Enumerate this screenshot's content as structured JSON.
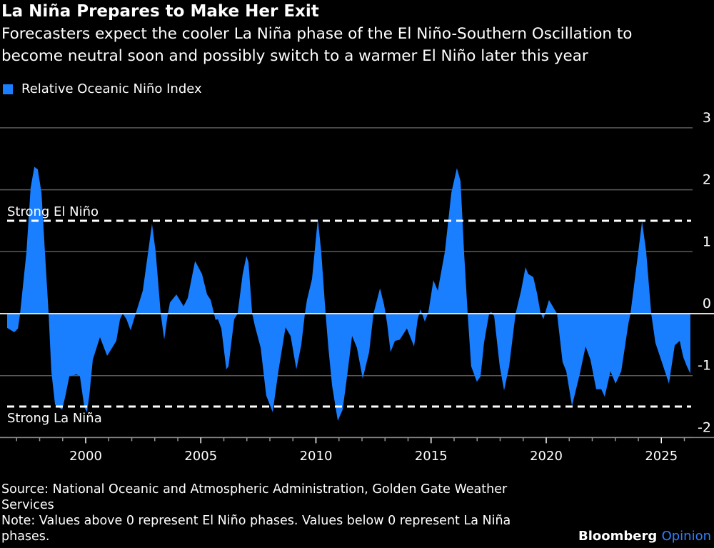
{
  "header": {
    "title": "La Niña Prepares to Make Her Exit",
    "subtitle_line1": "Forecasters expect the cooler La Niña phase of the El Niño-Southern Oscillation to",
    "subtitle_line2": "become neutral soon and possibly switch to a warmer El Niño later this year"
  },
  "footer": {
    "source_line1": "Source: National Oceanic and Atmospheric Administration, Golden Gate Weather",
    "source_line2": "Services",
    "note_line1": "Note: Values above 0 represent El Niño phases. Values below 0 represent La Niña",
    "note_line2": "phases.",
    "brand": "Bloomberg",
    "brand_suffix": "Opinion"
  },
  "colors": {
    "series": "#1a7fff",
    "background": "#000000",
    "grid": "#5a5a5a",
    "threshold": "#ffffff"
  },
  "chart_data": {
    "type": "area",
    "title": "La Niña Prepares to Make Her Exit",
    "xlabel": "",
    "ylabel": "",
    "legend": [
      "Relative Oceanic Niño Index"
    ],
    "legend_position": "top-left",
    "xlim": [
      1996.28,
      2026.3
    ],
    "ylim": [
      -2,
      3
    ],
    "x_ticks": [
      2000,
      2005,
      2010,
      2015,
      2020,
      2025
    ],
    "x_tick_labels": [
      "2000",
      "2005",
      "2010",
      "2015",
      "2020",
      "2025"
    ],
    "y_ticks": [
      3,
      2,
      1,
      0,
      -1,
      -2
    ],
    "y_tick_labels": [
      "3",
      "2",
      "1",
      "0",
      "-1",
      "-2"
    ],
    "grid": true,
    "thresholds": [
      {
        "label": "Strong El Niño",
        "value": 1.5
      },
      {
        "label": "Strong La Niña",
        "value": -1.5
      }
    ],
    "series": [
      {
        "name": "Relative Oceanic Niño Index",
        "points": [
          [
            1996.59,
            -0.23
          ],
          [
            1996.9,
            -0.3
          ],
          [
            1997.06,
            -0.24
          ],
          [
            1997.15,
            0.0
          ],
          [
            1997.43,
            1.0
          ],
          [
            1997.61,
            2.03
          ],
          [
            1997.77,
            2.37
          ],
          [
            1997.92,
            2.33
          ],
          [
            1998.08,
            1.95
          ],
          [
            1998.23,
            1.0
          ],
          [
            1998.39,
            0.0
          ],
          [
            1998.51,
            -0.93
          ],
          [
            1998.67,
            -1.47
          ],
          [
            1998.98,
            -1.55
          ],
          [
            1999.13,
            -1.31
          ],
          [
            1999.29,
            -1.01
          ],
          [
            1999.6,
            -0.98
          ],
          [
            1999.75,
            -1.01
          ],
          [
            1999.94,
            -1.51
          ],
          [
            2000.06,
            -1.59
          ],
          [
            2000.16,
            -1.31
          ],
          [
            2000.31,
            -0.74
          ],
          [
            2000.62,
            -0.38
          ],
          [
            2000.93,
            -0.68
          ],
          [
            2001.15,
            -0.55
          ],
          [
            2001.33,
            -0.44
          ],
          [
            2001.49,
            -0.09
          ],
          [
            2001.61,
            0.0
          ],
          [
            2001.77,
            -0.09
          ],
          [
            2001.95,
            -0.27
          ],
          [
            2002.17,
            0.0
          ],
          [
            2002.48,
            0.37
          ],
          [
            2002.88,
            1.45
          ],
          [
            2003.04,
            1.0
          ],
          [
            2003.26,
            0.0
          ],
          [
            2003.41,
            -0.42
          ],
          [
            2003.57,
            0.0
          ],
          [
            2003.66,
            0.18
          ],
          [
            2003.94,
            0.31
          ],
          [
            2004.25,
            0.12
          ],
          [
            2004.43,
            0.25
          ],
          [
            2004.75,
            0.85
          ],
          [
            2005.05,
            0.64
          ],
          [
            2005.27,
            0.31
          ],
          [
            2005.43,
            0.22
          ],
          [
            2005.64,
            -0.1
          ],
          [
            2005.74,
            -0.09
          ],
          [
            2005.89,
            -0.24
          ],
          [
            2006.11,
            -0.9
          ],
          [
            2006.2,
            -0.85
          ],
          [
            2006.45,
            -0.09
          ],
          [
            2006.6,
            0.0
          ],
          [
            2006.82,
            0.64
          ],
          [
            2006.98,
            0.93
          ],
          [
            2007.07,
            0.83
          ],
          [
            2007.23,
            0.0
          ],
          [
            2007.35,
            -0.2
          ],
          [
            2007.6,
            -0.55
          ],
          [
            2007.84,
            -1.32
          ],
          [
            2008.12,
            -1.59
          ],
          [
            2008.37,
            -0.93
          ],
          [
            2008.68,
            -0.22
          ],
          [
            2008.9,
            -0.36
          ],
          [
            2009.15,
            -0.9
          ],
          [
            2009.36,
            -0.51
          ],
          [
            2009.52,
            0.0
          ],
          [
            2009.61,
            0.22
          ],
          [
            2009.83,
            0.56
          ],
          [
            2010.08,
            1.53
          ],
          [
            2010.23,
            1.0
          ],
          [
            2010.42,
            0.0
          ],
          [
            2010.54,
            -0.55
          ],
          [
            2010.7,
            -1.16
          ],
          [
            2010.95,
            -1.73
          ],
          [
            2011.16,
            -1.55
          ],
          [
            2011.38,
            -0.93
          ],
          [
            2011.57,
            -0.36
          ],
          [
            2011.78,
            -0.55
          ],
          [
            2012.03,
            -1.05
          ],
          [
            2012.31,
            -0.62
          ],
          [
            2012.5,
            0.0
          ],
          [
            2012.78,
            0.41
          ],
          [
            2012.96,
            0.14
          ],
          [
            2013.09,
            -0.16
          ],
          [
            2013.24,
            -0.62
          ],
          [
            2013.43,
            -0.44
          ],
          [
            2013.64,
            -0.42
          ],
          [
            2013.95,
            -0.24
          ],
          [
            2014.26,
            -0.53
          ],
          [
            2014.42,
            -0.09
          ],
          [
            2014.54,
            0.07
          ],
          [
            2014.73,
            -0.13
          ],
          [
            2014.88,
            0.02
          ],
          [
            2015.1,
            0.54
          ],
          [
            2015.29,
            0.37
          ],
          [
            2015.6,
            1.0
          ],
          [
            2015.88,
            1.95
          ],
          [
            2016.12,
            2.35
          ],
          [
            2016.28,
            2.14
          ],
          [
            2016.43,
            1.0
          ],
          [
            2016.59,
            0.0
          ],
          [
            2016.74,
            -0.85
          ],
          [
            2016.99,
            -1.1
          ],
          [
            2017.15,
            -1.01
          ],
          [
            2017.3,
            -0.47
          ],
          [
            2017.52,
            0.0
          ],
          [
            2017.61,
            0.03
          ],
          [
            2017.74,
            -0.04
          ],
          [
            2017.98,
            -0.85
          ],
          [
            2018.17,
            -1.24
          ],
          [
            2018.39,
            -0.85
          ],
          [
            2018.67,
            0.0
          ],
          [
            2018.91,
            0.37
          ],
          [
            2019.1,
            0.75
          ],
          [
            2019.22,
            0.64
          ],
          [
            2019.44,
            0.59
          ],
          [
            2019.6,
            0.33
          ],
          [
            2019.75,
            0.02
          ],
          [
            2019.88,
            -0.09
          ],
          [
            2020.0,
            0.07
          ],
          [
            2020.12,
            0.22
          ],
          [
            2020.31,
            0.1
          ],
          [
            2020.47,
            0.0
          ],
          [
            2020.71,
            -0.78
          ],
          [
            2020.87,
            -0.93
          ],
          [
            2021.12,
            -1.49
          ],
          [
            2021.46,
            -0.97
          ],
          [
            2021.71,
            -0.53
          ],
          [
            2021.92,
            -0.74
          ],
          [
            2022.17,
            -1.22
          ],
          [
            2022.39,
            -1.22
          ],
          [
            2022.54,
            -1.34
          ],
          [
            2022.79,
            -0.93
          ],
          [
            2023.01,
            -1.13
          ],
          [
            2023.26,
            -0.93
          ],
          [
            2023.57,
            -0.16
          ],
          [
            2023.66,
            0.0
          ],
          [
            2023.97,
            0.91
          ],
          [
            2024.16,
            1.49
          ],
          [
            2024.34,
            1.0
          ],
          [
            2024.56,
            0.0
          ],
          [
            2024.74,
            -0.47
          ],
          [
            2025.02,
            -0.78
          ],
          [
            2025.33,
            -1.13
          ],
          [
            2025.58,
            -0.51
          ],
          [
            2025.8,
            -0.44
          ],
          [
            2025.95,
            -0.7
          ],
          [
            2026.11,
            -0.85
          ],
          [
            2026.26,
            -0.97
          ]
        ]
      }
    ]
  }
}
